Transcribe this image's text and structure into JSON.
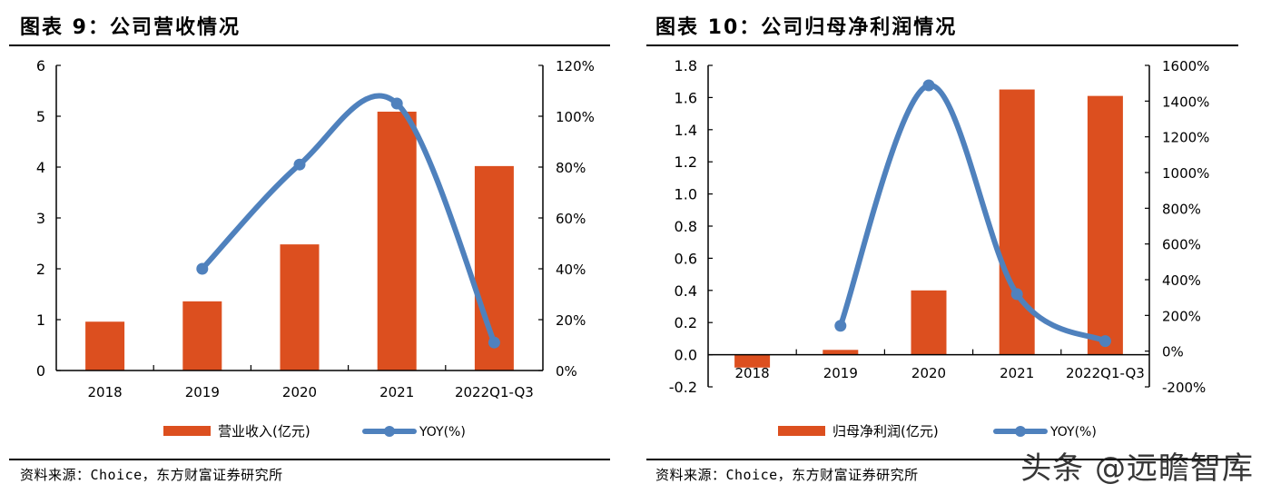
{
  "charts": {
    "left": {
      "figure_title": "图表 9：公司营收情况",
      "source": "资料来源：Choice，东方财富证券研究所",
      "legend": {
        "bar_label": "营业收入(亿元)",
        "line_label": "YOY(%)"
      }
    },
    "right": {
      "figure_title": "图表 10：公司归母净利润情况",
      "source": "资料来源：Choice，东方财富证券研究所",
      "legend": {
        "bar_label": "归母净利润(亿元)",
        "line_label": "YOY(%)"
      }
    }
  },
  "watermark": "头条 @远瞻智库",
  "colors": {
    "bar": "#DC4F1F",
    "line": "#4F81BD",
    "axis": "#000000"
  },
  "chart_data": [
    {
      "type": "bar+line",
      "title": "图表 9：公司营收情况",
      "categories": [
        "2018",
        "2019",
        "2020",
        "2021",
        "2022Q1-Q3"
      ],
      "series": [
        {
          "name": "营业收入(亿元)",
          "type": "bar",
          "axis": "left",
          "values": [
            0.96,
            1.36,
            2.48,
            5.09,
            4.02
          ]
        },
        {
          "name": "YOY(%)",
          "type": "line",
          "axis": "right",
          "values": [
            null,
            40,
            81,
            105,
            11
          ]
        }
      ],
      "y_left": {
        "range": [
          0,
          6
        ],
        "ticks": [
          "0",
          "1",
          "2",
          "3",
          "4",
          "5",
          "6"
        ],
        "tick_values": [
          0,
          1,
          2,
          3,
          4,
          5,
          6
        ]
      },
      "y_right": {
        "range": [
          0,
          120
        ],
        "ticks": [
          "0%",
          "20%",
          "40%",
          "60%",
          "80%",
          "100%",
          "120%"
        ],
        "tick_values": [
          0,
          20,
          40,
          60,
          80,
          100,
          120
        ]
      },
      "grid": false,
      "legend_position": "bottom"
    },
    {
      "type": "bar+line",
      "title": "图表 10：公司归母净利润情况",
      "categories": [
        "2018",
        "2019",
        "2020",
        "2021",
        "2022Q1-Q3"
      ],
      "series": [
        {
          "name": "归母净利润(亿元)",
          "type": "bar",
          "axis": "left",
          "values": [
            -0.08,
            0.03,
            0.4,
            1.65,
            1.61
          ]
        },
        {
          "name": "YOY(%)",
          "type": "line",
          "axis": "right",
          "values": [
            null,
            142,
            1488,
            319,
            56
          ]
        }
      ],
      "y_left": {
        "range": [
          -0.2,
          1.8
        ],
        "ticks": [
          "-0.2",
          "0.0",
          "0.2",
          "0.4",
          "0.6",
          "0.8",
          "1.0",
          "1.2",
          "1.4",
          "1.6",
          "1.8"
        ],
        "tick_values": [
          -0.2,
          0,
          0.2,
          0.4,
          0.6,
          0.8,
          1.0,
          1.2,
          1.4,
          1.6,
          1.8
        ]
      },
      "y_right": {
        "range": [
          -200,
          1600
        ],
        "ticks": [
          "-200%",
          "0%",
          "200%",
          "400%",
          "600%",
          "800%",
          "1000%",
          "1200%",
          "1400%",
          "1600%"
        ],
        "tick_values": [
          -200,
          0,
          200,
          400,
          600,
          800,
          1000,
          1200,
          1400,
          1600
        ]
      },
      "grid": false,
      "legend_position": "bottom"
    }
  ]
}
